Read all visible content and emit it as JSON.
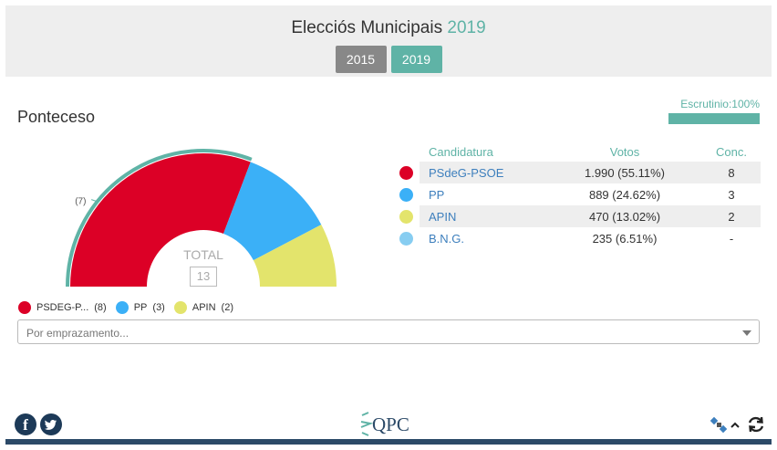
{
  "header": {
    "title_text": "Elecciós Municipais",
    "title_year": "2019",
    "years": [
      {
        "label": "2015",
        "active": false
      },
      {
        "label": "2019",
        "active": true
      }
    ]
  },
  "municipality": "Ponteceso",
  "scrutiny": {
    "label": "Escrutinio:100%",
    "percent": 100
  },
  "total": {
    "label": "TOTAL",
    "value": "13"
  },
  "majority_label": "(7)",
  "legend": [
    {
      "name": "PSDEG-P...",
      "seats": "(8)",
      "color": "#dc0026"
    },
    {
      "name": "PP",
      "seats": "(3)",
      "color": "#3bb0f7"
    },
    {
      "name": "APIN",
      "seats": "(2)",
      "color": "#e3e46c"
    }
  ],
  "table": {
    "headers": {
      "candidatura": "Candidatura",
      "votos": "Votos",
      "conc": "Conc."
    },
    "rows": [
      {
        "party": "PSdeG-PSOE",
        "votes": "1.990 (55.11%)",
        "seats": "8",
        "color": "#dc0026"
      },
      {
        "party": "PP",
        "votes": "889 (24.62%)",
        "seats": "3",
        "color": "#3bb0f7"
      },
      {
        "party": "APIN",
        "votes": "470 (13.02%)",
        "seats": "2",
        "color": "#e3e46c"
      },
      {
        "party": "B.N.G.",
        "votes": "235 (6.51%)",
        "seats": "-",
        "color": "#87cdf1"
      }
    ]
  },
  "select": {
    "placeholder": "Por emprazamento..."
  },
  "footer": {
    "logo": "QPC",
    "icons": [
      "facebook-icon",
      "twitter-icon",
      "satellite-icon",
      "chevron-up-icon",
      "refresh-icon"
    ]
  },
  "chart_data": {
    "type": "pie",
    "categories": [
      "PSDEG-P...",
      "PP",
      "APIN"
    ],
    "values": [
      8,
      3,
      2
    ],
    "colors": [
      "#dc0026",
      "#3bb0f7",
      "#e3e46c"
    ],
    "majority_arc_color": "#5fb3a6"
  }
}
